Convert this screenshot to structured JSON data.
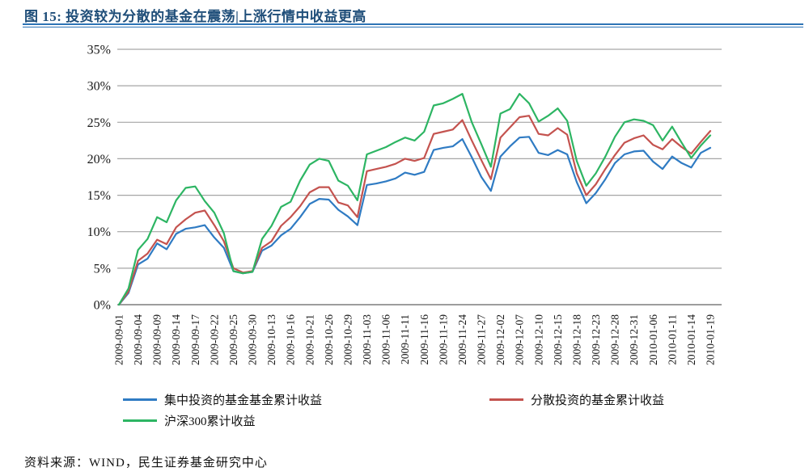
{
  "figure": {
    "title": "图 15:  投资较为分散的基金在震荡|上涨行情中收益更高"
  },
  "source": {
    "text": "资料来源：WIND，民生证券基金研究中心"
  },
  "chart_data": {
    "type": "line",
    "title": "图 15:  投资较为分散的基金在震荡|上涨行情中收益更高",
    "xlabel": "",
    "ylabel": "",
    "ylim": [
      0,
      35
    ],
    "y_tick_step": 5,
    "grid": "horizontal",
    "legend_position": "bottom",
    "x_label_rotation": -90,
    "note": "series values are sampled at each x tick label plus one midpoint between labels (even indices = labeled dates)",
    "y_ticks": [
      {
        "label": "0%",
        "value": 0
      },
      {
        "label": "5%",
        "value": 5
      },
      {
        "label": "10%",
        "value": 10
      },
      {
        "label": "15%",
        "value": 15
      },
      {
        "label": "20%",
        "value": 20
      },
      {
        "label": "25%",
        "value": 25
      },
      {
        "label": "30%",
        "value": 30
      },
      {
        "label": "35%",
        "value": 35
      }
    ],
    "x_tick_labels": [
      "2009-09-01",
      "2009-09-04",
      "2009-09-09",
      "2009-09-14",
      "2009-09-17",
      "2009-09-22",
      "2009-09-25",
      "2009-09-30",
      "2009-10-13",
      "2009-10-16",
      "2009-10-21",
      "2009-10-26",
      "2009-10-29",
      "2009-11-03",
      "2009-11-06",
      "2009-11-11",
      "2009-11-16",
      "2009-11-19",
      "2009-11-24",
      "2009-11-27",
      "2009-12-02",
      "2009-12-07",
      "2009-12-10",
      "2009-12-15",
      "2009-12-18",
      "2009-12-23",
      "2009-12-28",
      "2009-12-31",
      "2010-01-06",
      "2010-01-11",
      "2010-01-14",
      "2010-01-19"
    ],
    "series": [
      {
        "name": "集中投资的基金基金累计收益",
        "color": "#2f7bc3",
        "values": [
          0.0,
          1.6,
          5.5,
          6.3,
          8.4,
          7.6,
          9.7,
          10.4,
          10.6,
          10.9,
          9.2,
          7.8,
          4.6,
          4.3,
          4.5,
          7.4,
          8.1,
          9.5,
          10.4,
          12.0,
          13.8,
          14.5,
          14.4,
          13.0,
          12.1,
          10.9,
          16.4,
          16.6,
          16.9,
          17.3,
          18.1,
          17.8,
          18.2,
          21.2,
          21.5,
          21.7,
          22.7,
          20.2,
          17.5,
          15.6,
          20.3,
          21.7,
          22.9,
          23.0,
          20.8,
          20.5,
          21.2,
          20.6,
          16.8,
          13.9,
          15.3,
          17.2,
          19.4,
          20.6,
          21.0,
          21.1,
          19.6,
          18.6,
          20.3,
          19.4,
          18.8,
          20.8,
          21.5
        ]
      },
      {
        "name": "分散投资的基金累计收益",
        "color": "#c4534f",
        "values": [
          0.0,
          1.8,
          6.0,
          7.0,
          8.9,
          8.3,
          10.6,
          11.7,
          12.6,
          12.9,
          10.9,
          8.7,
          5.0,
          4.4,
          4.6,
          7.8,
          8.7,
          10.8,
          12.0,
          13.5,
          15.4,
          16.1,
          16.1,
          14.0,
          13.6,
          12.0,
          18.3,
          18.6,
          18.9,
          19.3,
          20.0,
          19.7,
          20.1,
          23.4,
          23.7,
          24.0,
          25.3,
          22.5,
          19.8,
          17.2,
          22.9,
          24.3,
          25.7,
          25.9,
          23.4,
          23.2,
          24.2,
          23.3,
          18.0,
          15.0,
          16.5,
          18.6,
          20.5,
          22.2,
          22.8,
          23.2,
          21.9,
          21.3,
          22.7,
          21.6,
          20.7,
          22.3,
          23.8
        ]
      },
      {
        "name": "沪深300累计收益",
        "color": "#2db563",
        "values": [
          0.0,
          2.2,
          7.5,
          9.0,
          12.0,
          11.3,
          14.3,
          16.0,
          16.2,
          14.2,
          12.6,
          9.8,
          4.6,
          4.3,
          4.5,
          9.0,
          10.8,
          13.4,
          14.1,
          17.0,
          19.2,
          20.0,
          19.7,
          17.0,
          16.3,
          14.3,
          20.6,
          21.1,
          21.6,
          22.3,
          22.9,
          22.5,
          23.7,
          27.3,
          27.6,
          28.2,
          28.9,
          25.0,
          22.0,
          18.9,
          26.2,
          26.8,
          28.9,
          27.6,
          25.1,
          25.9,
          26.9,
          25.2,
          19.7,
          16.3,
          18.0,
          20.3,
          23.0,
          25.0,
          25.4,
          25.2,
          24.6,
          22.5,
          24.4,
          22.2,
          20.1,
          21.8,
          23.2
        ]
      }
    ]
  }
}
